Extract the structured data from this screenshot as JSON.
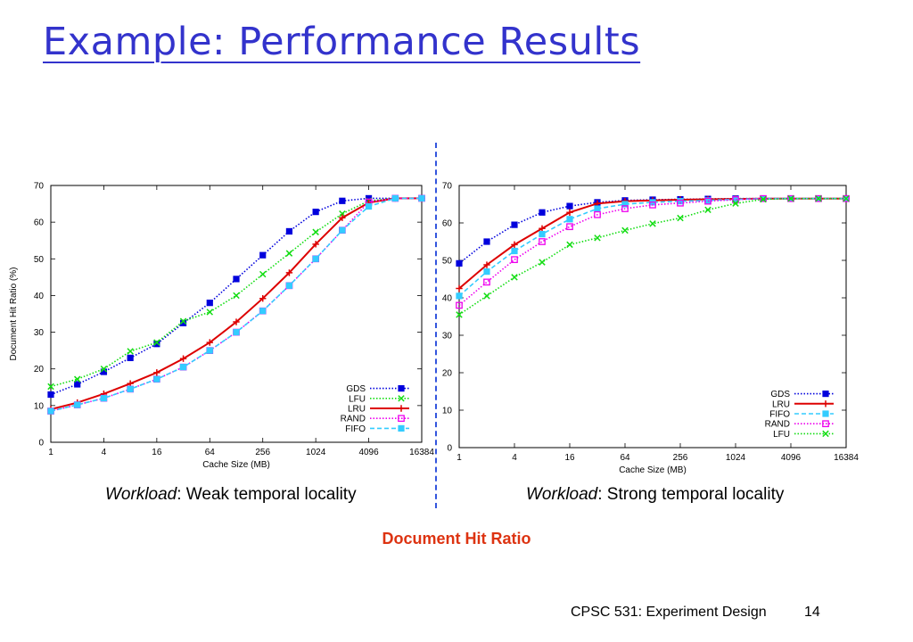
{
  "slide": {
    "title": "Example: Performance Results",
    "caption_left_key": "Workload",
    "caption_left_rest": ": Weak temporal locality",
    "caption_right_key": "Workload",
    "caption_right_rest": ": Strong temporal locality",
    "overall_caption": "Document Hit Ratio",
    "footer_course": "CPSC 531: Experiment Design",
    "footer_page": "14",
    "divider_color": "#3355dd",
    "title_color": "#3333cc",
    "caption_color": "#dd3311"
  },
  "chart_data": [
    {
      "type": "line",
      "xscale": "log2",
      "x": [
        1,
        2,
        4,
        8,
        16,
        32,
        64,
        128,
        256,
        512,
        1024,
        2048,
        4096,
        8192,
        16384
      ],
      "xticks": [
        "1",
        "4",
        "16",
        "64",
        "256",
        "1024",
        "4096",
        "16384"
      ],
      "yticks": [
        "0",
        "10",
        "20",
        "30",
        "40",
        "50",
        "60",
        "70"
      ],
      "ylim": [
        0,
        70
      ],
      "xlabel": "Cache Size (MB)",
      "ylabel": "Document Hit Ratio (%)",
      "legend_position": "bottom-right",
      "series": [
        {
          "name": "GDS",
          "color": "#0000dd",
          "dash": "dotted",
          "marker": "filled-square",
          "values": [
            13,
            15.8,
            19.2,
            23,
            26.8,
            32.5,
            38,
            44.5,
            51,
            57.5,
            62.8,
            65.8,
            66.5,
            66.5,
            66.5
          ]
        },
        {
          "name": "LFU",
          "color": "#11dd11",
          "dash": "dotted",
          "marker": "x",
          "values": [
            15.2,
            17.2,
            20,
            24.8,
            27.2,
            33,
            35.5,
            40,
            45.8,
            51.5,
            57.3,
            62.3,
            65.8,
            66.5,
            66.5
          ]
        },
        {
          "name": "LRU",
          "color": "#dd0000",
          "dash": "solid",
          "marker": "plus",
          "values": [
            9,
            10.8,
            13.2,
            16,
            19,
            22.8,
            27.2,
            32.8,
            39.2,
            46.2,
            54,
            61.2,
            65.3,
            66.5,
            66.5
          ]
        },
        {
          "name": "RAND",
          "color": "#ee00ee",
          "dash": "dotted",
          "marker": "open-square",
          "values": [
            8.5,
            10.2,
            12,
            14.5,
            17.2,
            20.5,
            25,
            30,
            35.8,
            42.7,
            50,
            57.8,
            65.5,
            66.5,
            66.5
          ]
        },
        {
          "name": "FIFO",
          "color": "#33ccff",
          "dash": "dashed",
          "marker": "filled-square",
          "values": [
            8.5,
            10.2,
            12,
            14.5,
            17.2,
            20.5,
            25,
            30,
            35.8,
            42.7,
            50,
            57.8,
            64.3,
            66.5,
            66.5
          ]
        }
      ]
    },
    {
      "type": "line",
      "xscale": "log2",
      "x": [
        1,
        2,
        4,
        8,
        16,
        32,
        64,
        128,
        256,
        512,
        1024,
        2048,
        4096,
        8192,
        16384
      ],
      "xticks": [
        "1",
        "4",
        "16",
        "64",
        "256",
        "1024",
        "4096",
        "16384"
      ],
      "yticks": [
        "0",
        "10",
        "20",
        "30",
        "40",
        "50",
        "60",
        "70"
      ],
      "ylim": [
        0,
        70
      ],
      "xlabel": "Cache Size (MB)",
      "ylabel": "",
      "legend_position": "bottom-right",
      "series": [
        {
          "name": "GDS",
          "color": "#0000dd",
          "dash": "dotted",
          "marker": "filled-square",
          "values": [
            49.2,
            55,
            59.5,
            62.8,
            64.5,
            65.5,
            66,
            66.2,
            66.3,
            66.4,
            66.5,
            66.5,
            66.5,
            66.5,
            66.5
          ]
        },
        {
          "name": "LRU",
          "color": "#dd0000",
          "dash": "solid",
          "marker": "plus",
          "values": [
            42.5,
            48.8,
            54.2,
            58.5,
            62.8,
            65.2,
            65.8,
            66,
            66.2,
            66.3,
            66.4,
            66.5,
            66.5,
            66.5,
            66.5
          ]
        },
        {
          "name": "FIFO",
          "color": "#33ccff",
          "dash": "dashed",
          "marker": "filled-square",
          "values": [
            40.5,
            47,
            52.5,
            57,
            61,
            63.8,
            65,
            65.5,
            65.8,
            66,
            66.3,
            66.5,
            66.5,
            66.5,
            66.5
          ]
        },
        {
          "name": "RAND",
          "color": "#ee00ee",
          "dash": "dotted",
          "marker": "open-square",
          "values": [
            38,
            44.2,
            50.2,
            55,
            59,
            62.2,
            63.8,
            64.8,
            65.3,
            65.8,
            66.2,
            66.5,
            66.5,
            66.5,
            66.5
          ]
        },
        {
          "name": "LFU",
          "color": "#11dd11",
          "dash": "dotted",
          "marker": "x",
          "values": [
            35.5,
            40.5,
            45.5,
            49.5,
            54.2,
            56,
            58,
            59.8,
            61.3,
            63.5,
            65.2,
            66.3,
            66.5,
            66.5,
            66.5
          ]
        }
      ]
    }
  ]
}
